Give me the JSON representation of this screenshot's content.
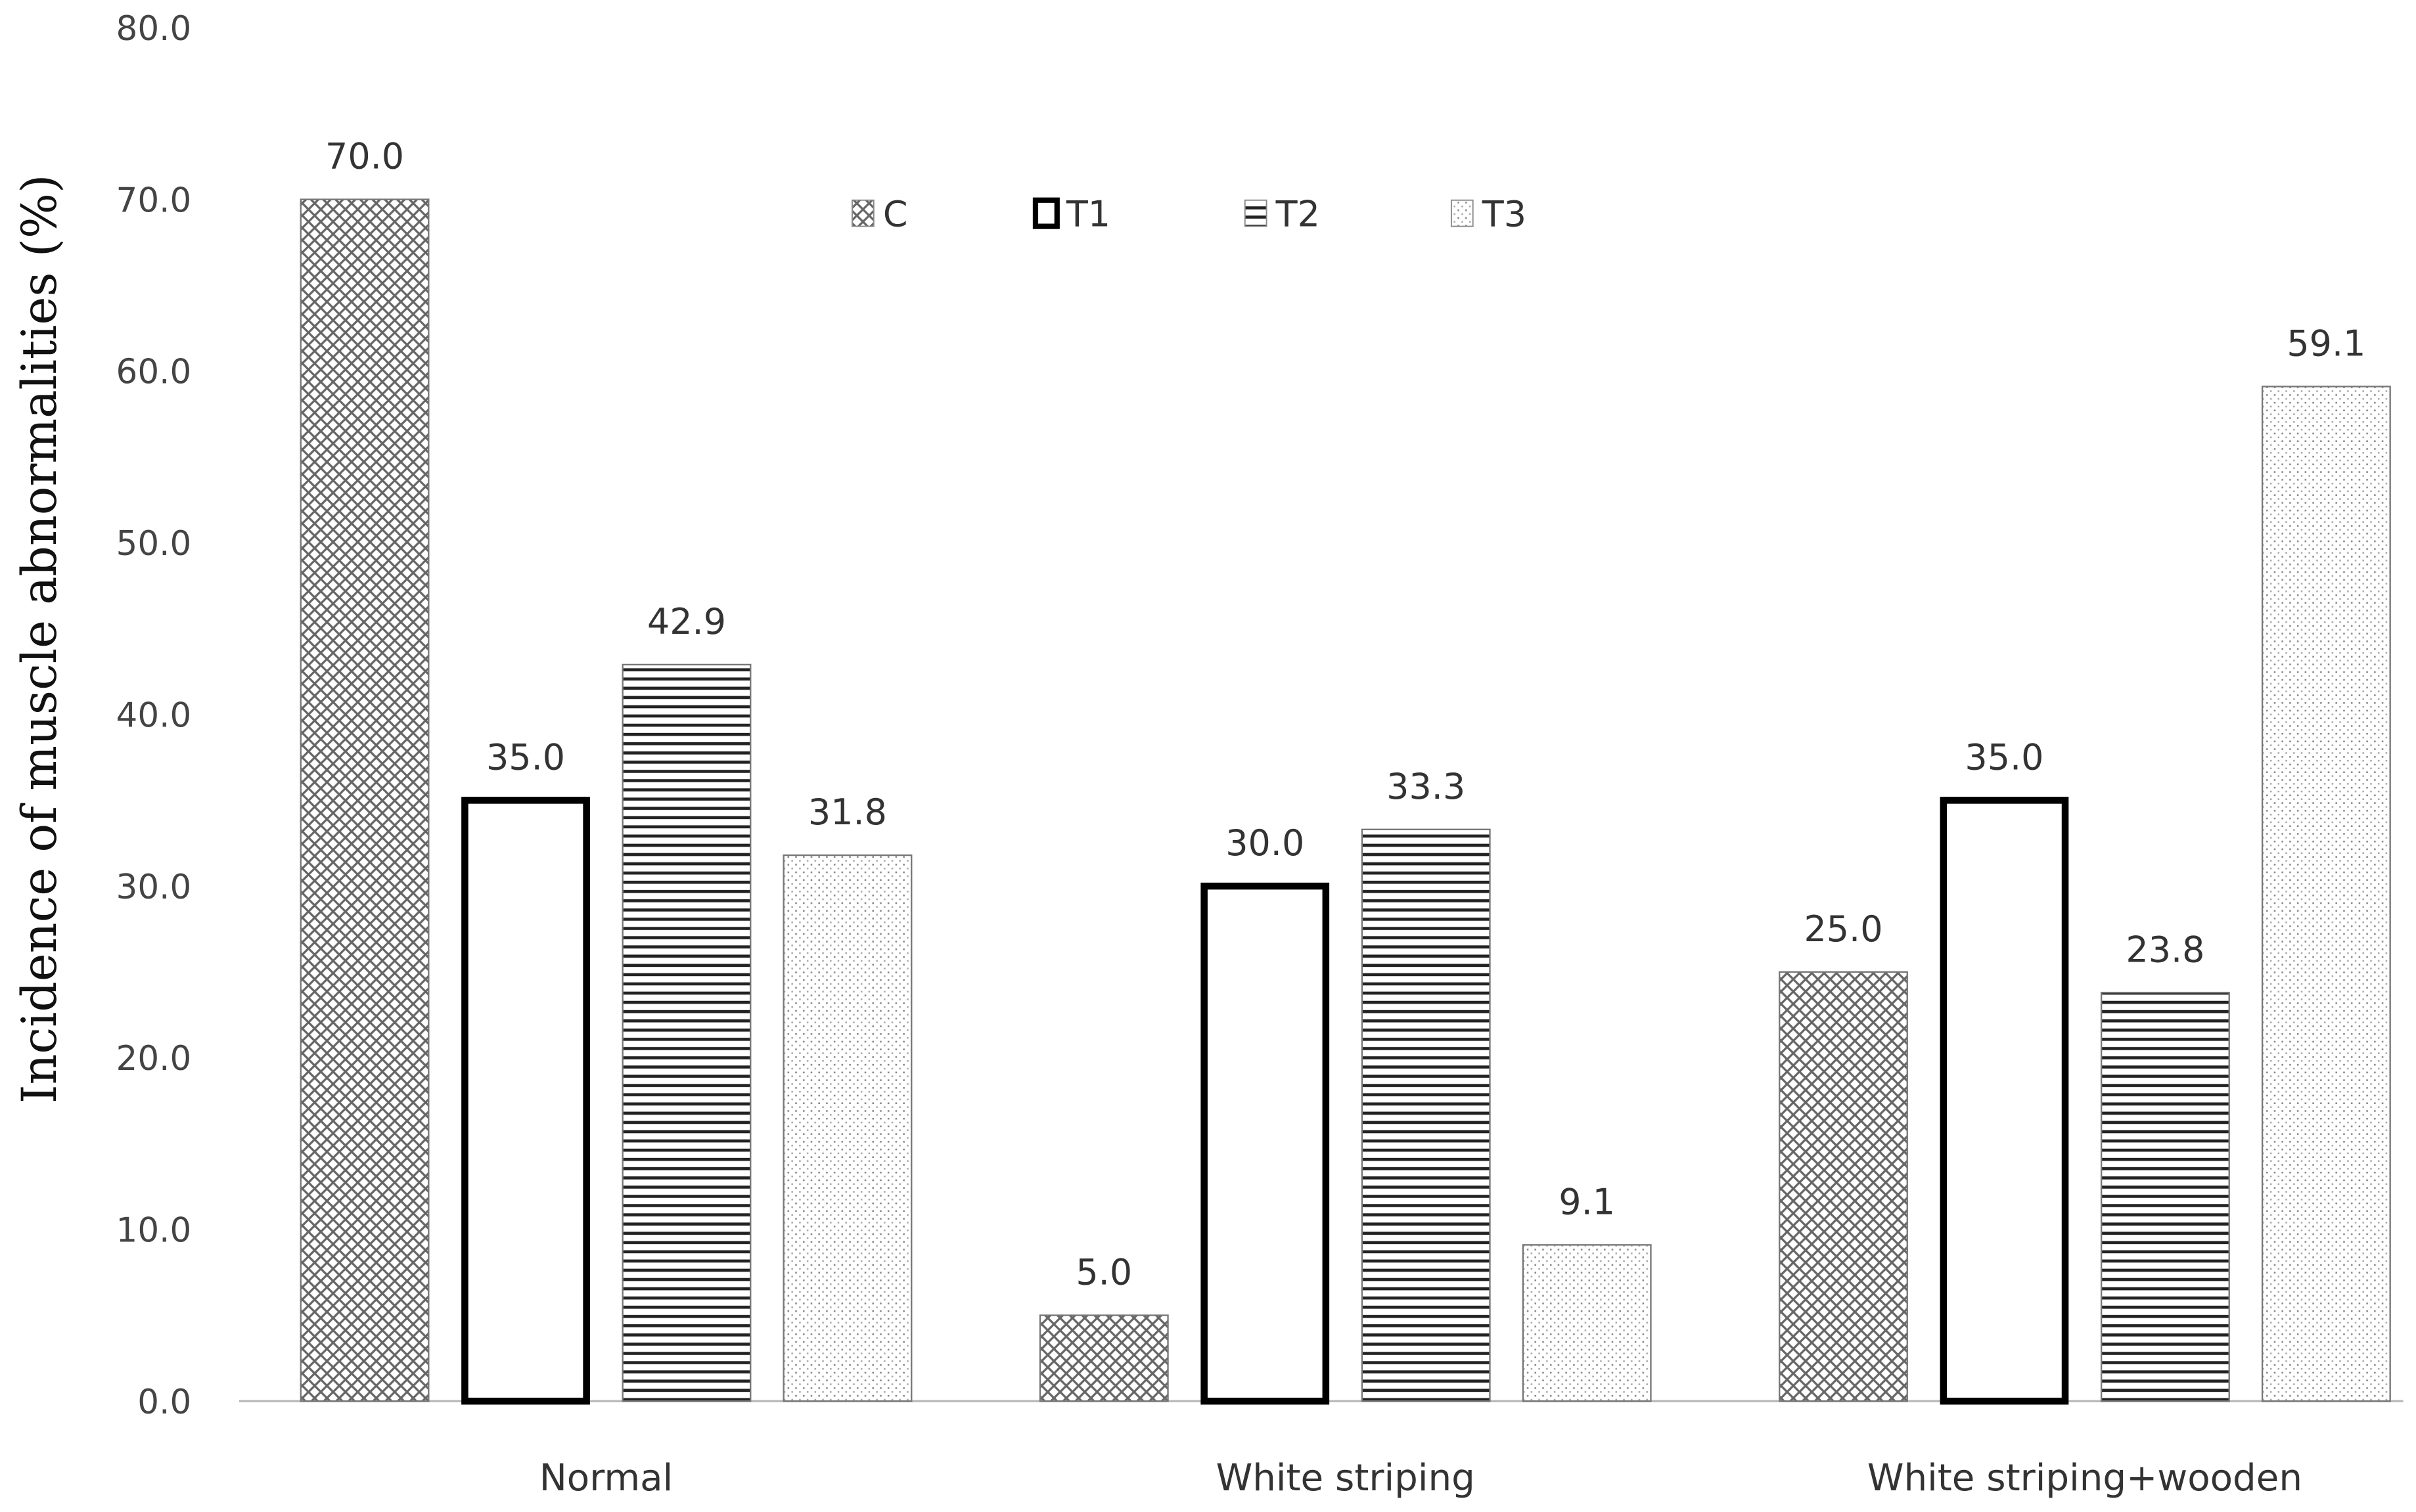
{
  "chart_data": {
    "type": "bar",
    "title": "",
    "xlabel": "",
    "ylabel": "Incidence of muscle abnormalities (%)",
    "ylim": [
      0,
      80
    ],
    "yticks": [
      "0.0",
      "10.0",
      "20.0",
      "30.0",
      "40.0",
      "50.0",
      "60.0",
      "70.0",
      "80.0"
    ],
    "grid": false,
    "legend_position": "top-center",
    "categories": [
      "Normal",
      "White striping",
      "White striping+wooden"
    ],
    "series": [
      {
        "name": "C",
        "pattern": "crosshatch",
        "values": [
          70.0,
          5.0,
          25.0
        ],
        "labels": [
          "70.0",
          "5.0",
          "25.0"
        ]
      },
      {
        "name": "T1",
        "pattern": "outline",
        "values": [
          35.0,
          30.0,
          35.0
        ],
        "labels": [
          "35.0",
          "30.0",
          "35.0"
        ]
      },
      {
        "name": "T2",
        "pattern": "horizontal-lines",
        "values": [
          42.9,
          33.3,
          23.8
        ],
        "labels": [
          "42.9",
          "33.3",
          "23.8"
        ]
      },
      {
        "name": "T3",
        "pattern": "dots",
        "values": [
          31.8,
          9.1,
          59.1
        ],
        "labels": [
          "31.8",
          "9.1",
          "59.1"
        ]
      }
    ],
    "colors": {
      "ink": "#000000",
      "pattern": "#555555",
      "text": "#333333"
    }
  }
}
